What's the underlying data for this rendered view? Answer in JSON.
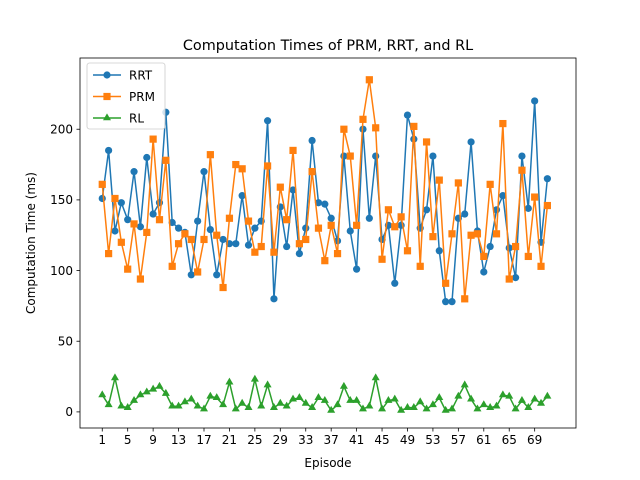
{
  "chart_data": {
    "type": "line",
    "title": "Computation Times of PRM, RRT, and RL",
    "xlabel": "Episode",
    "ylabel": "Computation Time (ms)",
    "xlim": [
      -2.5,
      75.5
    ],
    "ylim": [
      -11.4,
      250.4
    ],
    "x_ticks": [
      1,
      5,
      9,
      13,
      17,
      21,
      25,
      29,
      33,
      37,
      41,
      45,
      49,
      53,
      57,
      61,
      65,
      69
    ],
    "y_ticks": [
      0,
      50,
      100,
      150,
      200
    ],
    "grid": false,
    "legend_position": "top-left",
    "x": [
      1,
      2,
      3,
      4,
      5,
      6,
      7,
      8,
      9,
      10,
      11,
      12,
      13,
      14,
      15,
      16,
      17,
      18,
      19,
      20,
      21,
      22,
      23,
      24,
      25,
      26,
      27,
      28,
      29,
      30,
      31,
      32,
      33,
      34,
      35,
      36,
      37,
      38,
      39,
      40,
      41,
      42,
      43,
      44,
      45,
      46,
      47,
      48,
      49,
      50,
      51,
      52,
      53,
      54,
      55,
      56,
      57,
      58,
      59,
      60,
      61,
      62,
      63,
      64,
      65,
      66,
      67,
      68,
      69,
      70,
      71
    ],
    "series": [
      {
        "name": "RRT",
        "color": "#1f77b4",
        "marker": "circle",
        "values": [
          151,
          185,
          128,
          148,
          136,
          170,
          131,
          180,
          140,
          148,
          212,
          134,
          130,
          127,
          97,
          135,
          170,
          129,
          97,
          122,
          119,
          119,
          153,
          118,
          130,
          135,
          206,
          80,
          145,
          117,
          157,
          112,
          130,
          192,
          148,
          147,
          137,
          121,
          181,
          128,
          101,
          200,
          137,
          181,
          122,
          132,
          91,
          132,
          210,
          193,
          130,
          143,
          181,
          114,
          78,
          78,
          137,
          140,
          191,
          128,
          99,
          117,
          143,
          153,
          116,
          95,
          181,
          144,
          220,
          120,
          165
        ]
      },
      {
        "name": "PRM",
        "color": "#ff7f0e",
        "marker": "square",
        "values": [
          161,
          112,
          151,
          120,
          101,
          133,
          94,
          127,
          193,
          136,
          178,
          103,
          119,
          126,
          122,
          99,
          122,
          182,
          125,
          88,
          137,
          175,
          172,
          135,
          113,
          117,
          174,
          113,
          159,
          136,
          185,
          119,
          122,
          170,
          130,
          107,
          132,
          112,
          200,
          181,
          132,
          207,
          235,
          201,
          108,
          143,
          131,
          138,
          114,
          202,
          103,
          191,
          124,
          164,
          91,
          126,
          162,
          80,
          125,
          126,
          110,
          161,
          126,
          204,
          94,
          117,
          171,
          110,
          152,
          103,
          146
        ]
      },
      {
        "name": "RL",
        "color": "#2ca02c",
        "marker": "triangle",
        "values": [
          12,
          5,
          24,
          4,
          3,
          8,
          12,
          14,
          16,
          18,
          13,
          4,
          4,
          7,
          9,
          4,
          2,
          11,
          10,
          5,
          21,
          2,
          6,
          3,
          23,
          4,
          19,
          3,
          6,
          4,
          9,
          10,
          6,
          3,
          10,
          8,
          1,
          5,
          18,
          8,
          8,
          2,
          4,
          24,
          2,
          8,
          9,
          1,
          3,
          3,
          7,
          2,
          5,
          10,
          1,
          2,
          11,
          19,
          9,
          2,
          5,
          3,
          4,
          12,
          11,
          2,
          8,
          3,
          9,
          6,
          11
        ]
      }
    ]
  }
}
